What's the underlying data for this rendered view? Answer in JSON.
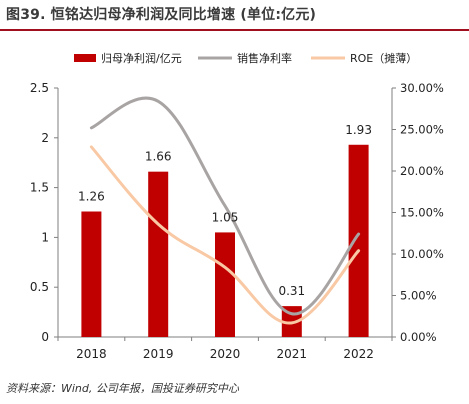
{
  "figure": {
    "title": "图39. 恒铭达归母净利润及同比增速 (单位:亿元)",
    "source": "资料来源：Wind, 公司年报，国投证券研究中心"
  },
  "chart_data": {
    "type": "bar",
    "categories": [
      "2018",
      "2019",
      "2020",
      "2021",
      "2022"
    ],
    "series": [
      {
        "name": "归母净利润/亿元",
        "type": "bar",
        "axis": "left",
        "values": [
          1.26,
          1.66,
          1.05,
          0.31,
          1.93
        ],
        "color": "#c00000",
        "data_labels": [
          "1.26",
          "1.66",
          "1.05",
          "0.31",
          "1.93"
        ]
      },
      {
        "name": "销售净利率",
        "type": "line",
        "axis": "right",
        "values": [
          25.2,
          28.4,
          15.8,
          2.8,
          12.4
        ],
        "color": "#a9a4a4"
      },
      {
        "name": "ROE（摊薄）",
        "type": "line",
        "axis": "right",
        "values": [
          22.9,
          13.6,
          8.4,
          1.7,
          10.4
        ],
        "color": "#f8c9a4"
      }
    ],
    "y_left": {
      "min": 0,
      "max": 2.5,
      "ticks": [
        "0",
        "0.5",
        "1",
        "1.5",
        "2",
        "2.5"
      ]
    },
    "y_right": {
      "min": 0,
      "max": 30,
      "ticks": [
        "0.00%",
        "5.00%",
        "10.00%",
        "15.00%",
        "20.00%",
        "25.00%",
        "30.00%"
      ]
    },
    "legend_position": "top",
    "grid": false
  }
}
